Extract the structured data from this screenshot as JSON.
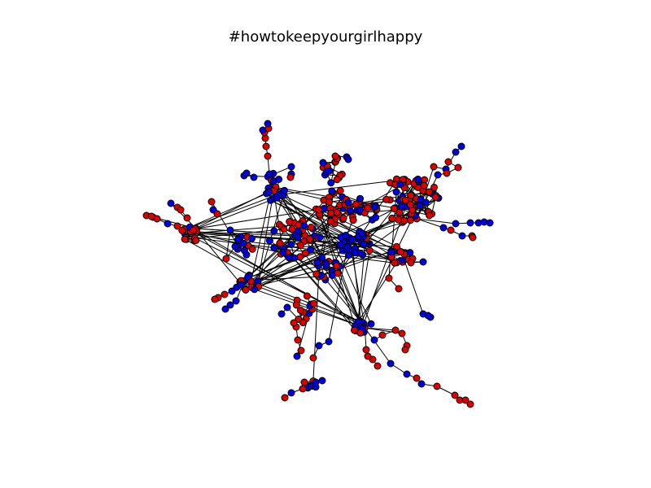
{
  "figure": {
    "title": "#howtokeepyourgirlhappy"
  },
  "colors": {
    "background": "#ffffff",
    "node_red": "#dd0000",
    "node_blue": "#0000dd",
    "node_outline": "#000000",
    "edge": "#000000"
  }
}
